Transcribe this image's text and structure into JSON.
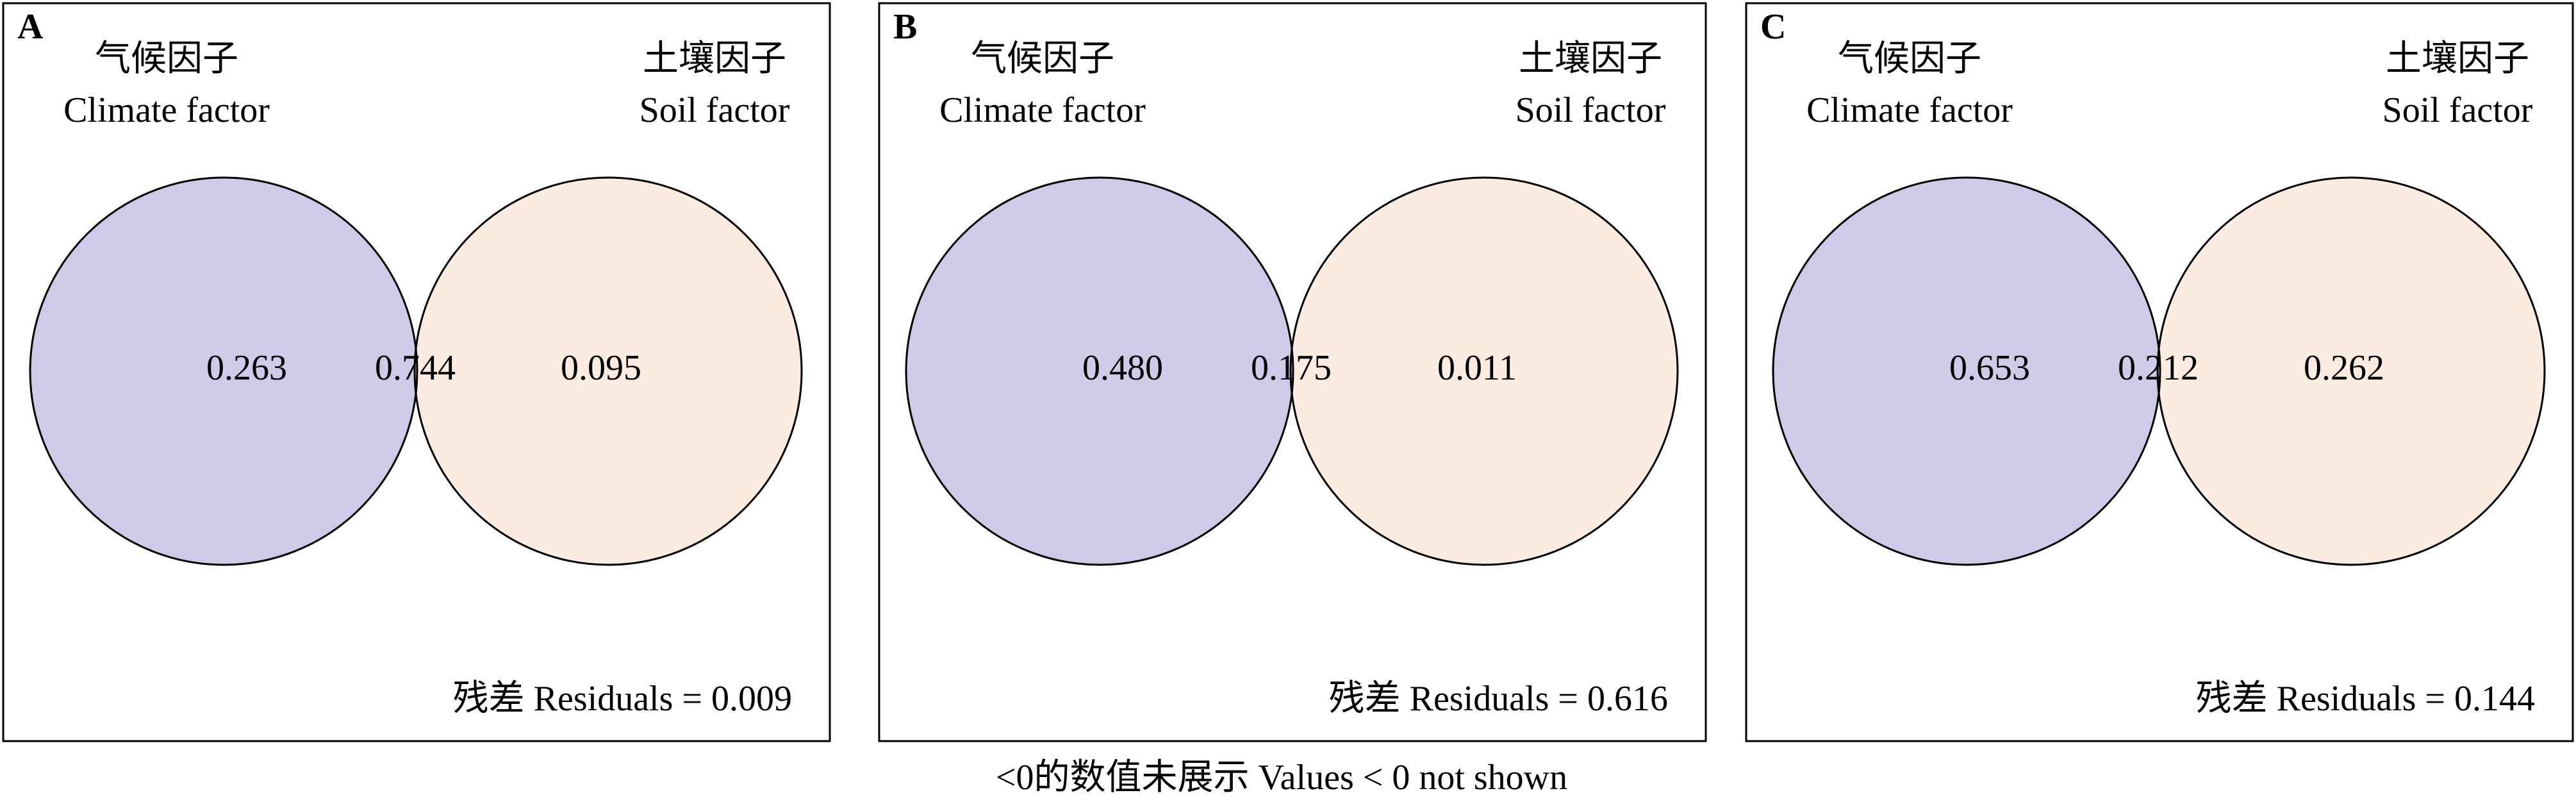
{
  "chart_data": [
    {
      "type": "venn",
      "panel": "A",
      "sets": [
        {
          "label_zh": "气候因子",
          "label_en": "Climate factor",
          "color": "#cdcbe8"
        },
        {
          "label_zh": "土壤因子",
          "label_en": "Soil factor",
          "color": "#fcebe0"
        }
      ],
      "overlap_color": "#cbbbd2",
      "values": [
        0.263,
        0.744,
        0.095
      ],
      "value_labels": [
        "0.263",
        "0.744",
        "0.095"
      ],
      "residual_name": "残差 Residuals =",
      "residual": 0.009,
      "residual_label": "0.009"
    },
    {
      "type": "venn",
      "panel": "B",
      "sets": [
        {
          "label_zh": "气候因子",
          "label_en": "Climate factor",
          "color": "#cdcbe8"
        },
        {
          "label_zh": "土壤因子",
          "label_en": "Soil factor",
          "color": "#fcebe0"
        }
      ],
      "overlap_color": "#cbbbd2",
      "values": [
        0.48,
        0.175,
        0.011
      ],
      "value_labels": [
        "0.480",
        "0.175",
        "0.011"
      ],
      "residual_name": "残差 Residuals =",
      "residual": 0.616,
      "residual_label": "0.616"
    },
    {
      "type": "venn",
      "panel": "C",
      "sets": [
        {
          "label_zh": "气候因子",
          "label_en": "Climate factor",
          "color": "#cdcbe8"
        },
        {
          "label_zh": "土壤因子",
          "label_en": "Soil factor",
          "color": "#fcebe0"
        }
      ],
      "overlap_color": "#cbbbd2",
      "values": [
        0.653,
        0.212,
        0.262
      ],
      "value_labels": [
        "0.653",
        "0.212",
        "0.262"
      ],
      "residual_name": "残差 Residuals =",
      "residual": 0.144,
      "residual_label": "0.144"
    }
  ],
  "note": "<0的数值未展示 Values < 0 not shown"
}
